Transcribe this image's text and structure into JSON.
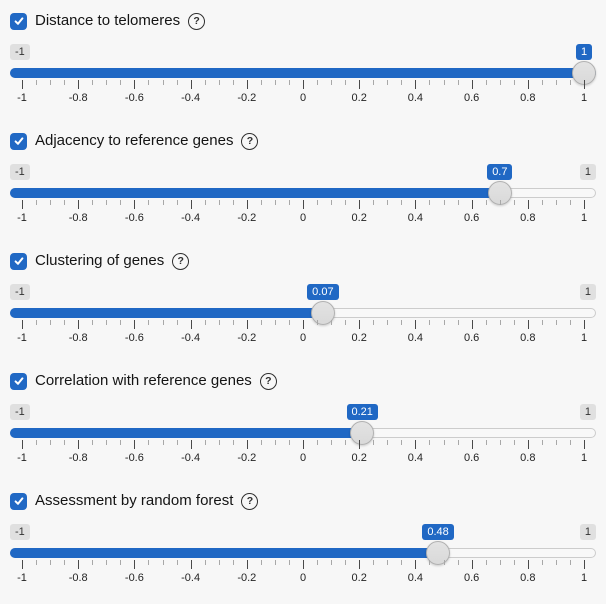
{
  "colors": {
    "accent": "#2068c4",
    "page_background": "#f7f7f7",
    "minmax_badge_bg": "#e0e0e0",
    "minmax_badge_text": "#333333",
    "track_background": "#f8f8f8",
    "track_border": "#cccccc",
    "handle_fill": "#d9d9d9",
    "handle_border": "#b0b0b0"
  },
  "help_icon_glyph": "?",
  "grid": {
    "major_tick_labels": [
      "-1",
      "-0.8",
      "-0.6",
      "-0.4",
      "-0.2",
      "0",
      "0.2",
      "0.4",
      "0.6",
      "0.8",
      "1"
    ],
    "minor_ticks_between_major": 3
  },
  "sliders": [
    {
      "label": "Distance to telomeres",
      "checked": true,
      "min": -1,
      "max": 1,
      "value": 1,
      "min_label": "-1",
      "max_label": "1",
      "value_label": "1"
    },
    {
      "label": "Adjacency to reference genes",
      "checked": true,
      "min": -1,
      "max": 1,
      "value": 0.7,
      "min_label": "-1",
      "max_label": "1",
      "value_label": "0.7"
    },
    {
      "label": "Clustering of genes",
      "checked": true,
      "min": -1,
      "max": 1,
      "value": 0.07,
      "min_label": "-1",
      "max_label": "1",
      "value_label": "0.07"
    },
    {
      "label": "Correlation with reference genes",
      "checked": true,
      "min": -1,
      "max": 1,
      "value": 0.21,
      "min_label": "-1",
      "max_label": "1",
      "value_label": "0.21"
    },
    {
      "label": "Assessment by random forest",
      "checked": true,
      "min": -1,
      "max": 1,
      "value": 0.48,
      "min_label": "-1",
      "max_label": "1",
      "value_label": "0.48"
    }
  ]
}
